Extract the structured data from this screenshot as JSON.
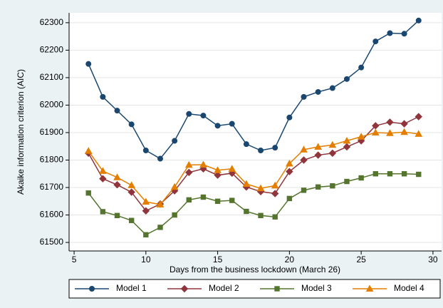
{
  "chart_data": {
    "type": "line",
    "x_label": "Days from the business lockdown (March 26)",
    "y_label": "Akaike information criterion (AIC)",
    "x": [
      6,
      7,
      8,
      9,
      10,
      11,
      12,
      13,
      14,
      15,
      16,
      17,
      18,
      19,
      20,
      21,
      22,
      23,
      24,
      25,
      26,
      27,
      28,
      29
    ],
    "series": [
      {
        "name": "Model 1",
        "color": "#1a476f",
        "marker": "circle",
        "values": [
          62150,
          62030,
          61980,
          61930,
          61835,
          61805,
          61870,
          61968,
          61962,
          61925,
          61932,
          61858,
          61835,
          61845,
          61955,
          62030,
          62048,
          62062,
          62095,
          62137,
          62232,
          62262,
          62260,
          62308
        ]
      },
      {
        "name": "Model 2",
        "color": "#90353b",
        "marker": "diamond",
        "values": [
          61825,
          61732,
          61710,
          61683,
          61615,
          61640,
          61688,
          61755,
          61768,
          61745,
          61752,
          61702,
          61685,
          61678,
          61758,
          61800,
          61818,
          61825,
          61848,
          61870,
          61925,
          61938,
          61932,
          61958
        ]
      },
      {
        "name": "Model 3",
        "color": "#55752f",
        "marker": "square",
        "values": [
          61680,
          61612,
          61598,
          61580,
          61528,
          61555,
          61600,
          61655,
          61665,
          61650,
          61653,
          61613,
          61598,
          61593,
          61660,
          61690,
          61702,
          61706,
          61722,
          61735,
          61750,
          61750,
          61750,
          61748
        ]
      },
      {
        "name": "Model 4",
        "color": "#e37e00",
        "marker": "triangle",
        "values": [
          61833,
          61760,
          61737,
          61708,
          61648,
          61638,
          61702,
          61782,
          61783,
          61763,
          61768,
          61713,
          61697,
          61707,
          61787,
          61838,
          61848,
          61855,
          61870,
          61885,
          61900,
          61898,
          61902,
          61895
        ]
      }
    ],
    "xlim": [
      4.65,
      30.6
    ],
    "xticks": [
      5,
      10,
      15,
      20,
      25,
      30
    ],
    "ylim": [
      61469,
      62336
    ],
    "yticks": [
      61500,
      61600,
      61700,
      61800,
      61900,
      62000,
      62100,
      62200,
      62300
    ],
    "grid": true,
    "legend": "bottom"
  }
}
